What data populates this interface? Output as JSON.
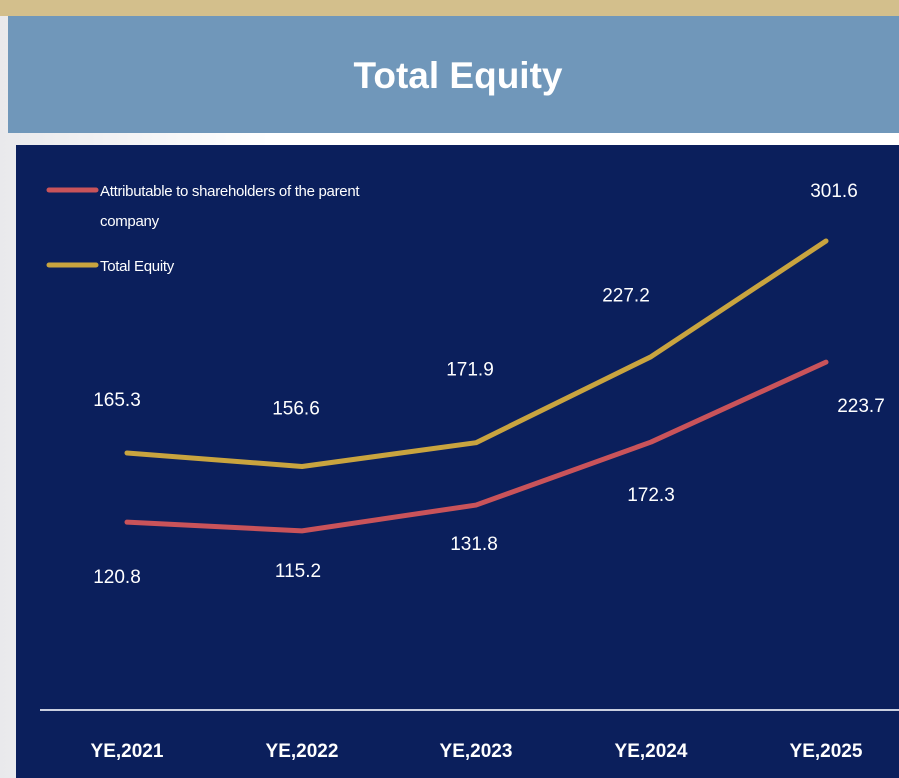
{
  "chart_data": {
    "type": "line",
    "title": "Total Equity",
    "categories": [
      "YE,2021",
      "YE,2022",
      "YE,2023",
      "YE,2024",
      "YE,2025"
    ],
    "series": [
      {
        "name": "Attributable to shareholders of the parent company",
        "color": "#c9535a",
        "values": [
          120.8,
          115.2,
          131.8,
          172.3,
          223.7
        ]
      },
      {
        "name": "Total Equity",
        "color": "#c9a43f",
        "values": [
          165.3,
          156.6,
          171.9,
          227.2,
          301.6
        ]
      }
    ],
    "ylim": [
      0,
      350
    ]
  }
}
